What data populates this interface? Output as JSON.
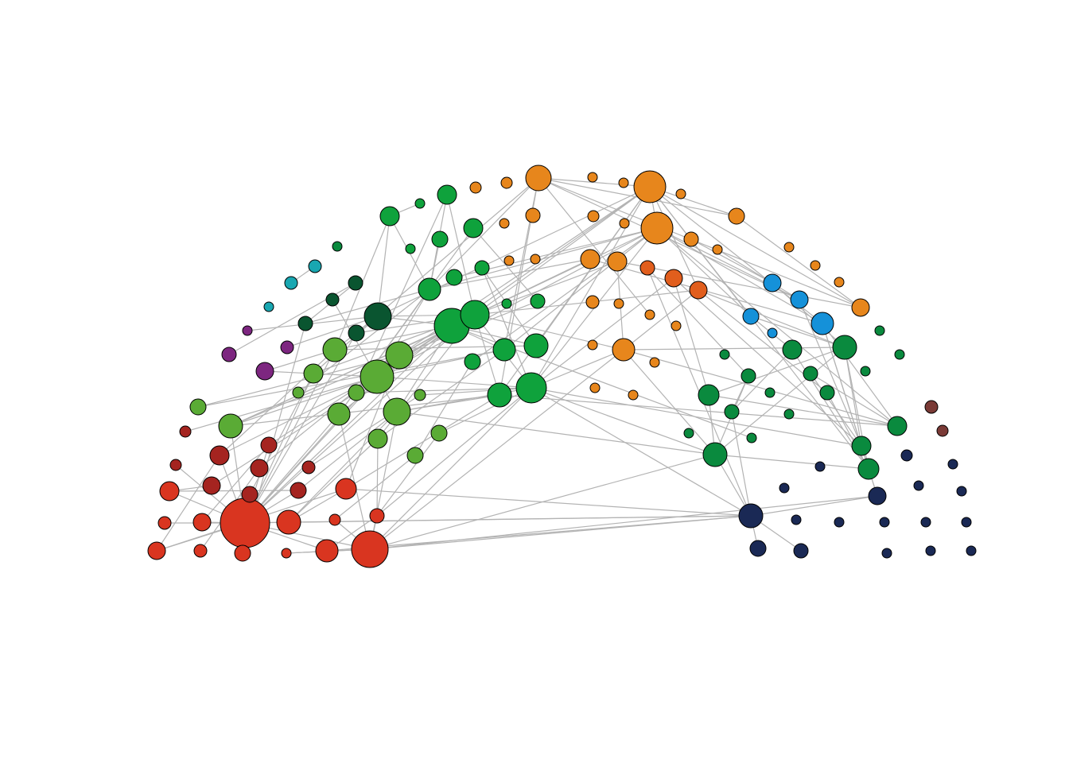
{
  "diagram": {
    "type": "network",
    "edge_color": "#b3b3b3",
    "node_outline": "#000000",
    "groups": {
      "red": "#d93520",
      "darkred": "#a52420",
      "brown": "#7a3a36",
      "lightgreen": "#5aab35",
      "green": "#0fa23c",
      "forestgreen": "#0a8a3e",
      "darkgreen": "#0a5530",
      "orange": "#e7861c",
      "darkorange": "#e15e1d",
      "blue": "#1591d9",
      "navy": "#1a2955",
      "teal": "#19a7b1",
      "purple": "#7d2680"
    },
    "node_count": 146
  }
}
